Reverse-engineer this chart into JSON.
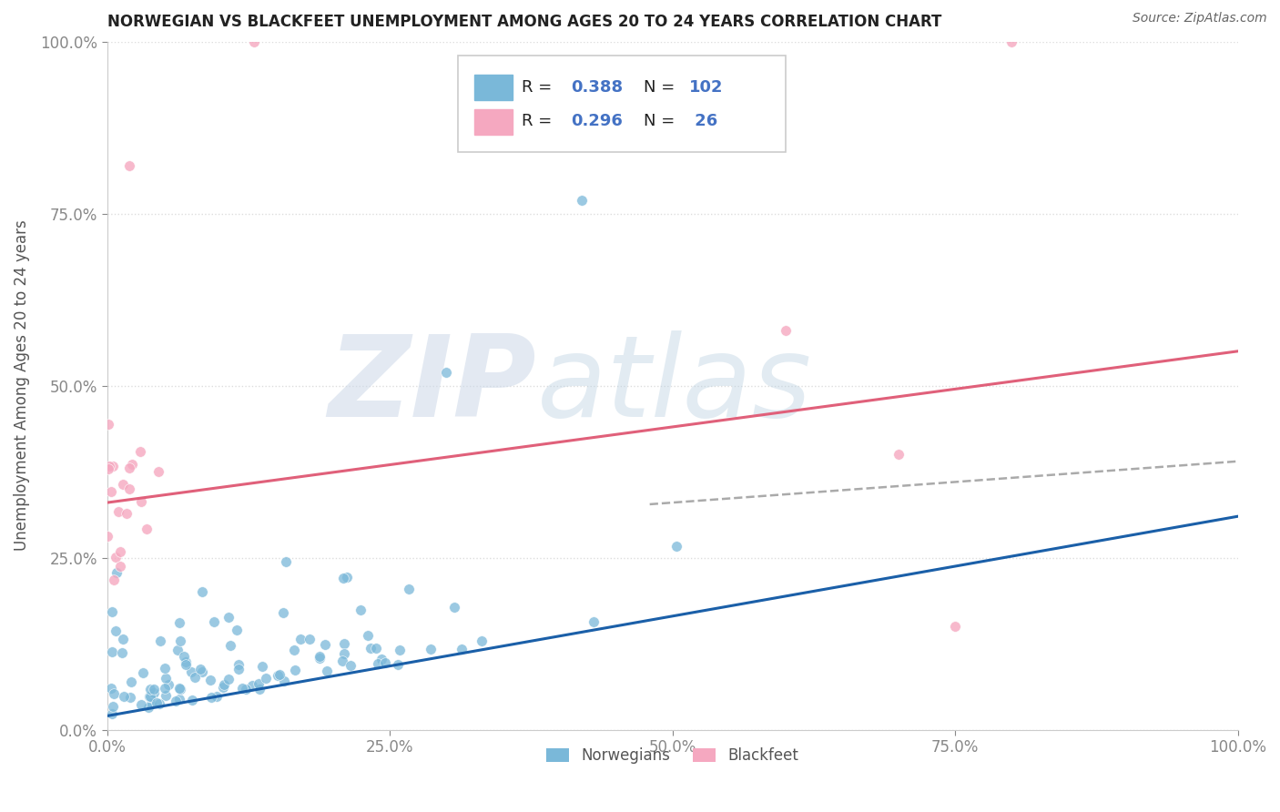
{
  "title": "NORWEGIAN VS BLACKFEET UNEMPLOYMENT AMONG AGES 20 TO 24 YEARS CORRELATION CHART",
  "source": "Source: ZipAtlas.com",
  "ylabel": "Unemployment Among Ages 20 to 24 years",
  "xlim": [
    0.0,
    1.0
  ],
  "ylim": [
    0.0,
    1.0
  ],
  "xticks": [
    0.0,
    0.25,
    0.5,
    0.75,
    1.0
  ],
  "xtick_labels": [
    "0.0%",
    "25.0%",
    "50.0%",
    "75.0%",
    "100.0%"
  ],
  "yticks": [
    0.0,
    0.25,
    0.5,
    0.75,
    1.0
  ],
  "ytick_labels": [
    "0.0%",
    "25.0%",
    "50.0%",
    "75.0%",
    "100.0%"
  ],
  "norwegian_color": "#7ab8d9",
  "blackfeet_color": "#f5a8c0",
  "trend_line_blue": "#1a5fa8",
  "trend_line_pink": "#e0607a",
  "trend_line_dashed": "#aaaaaa",
  "watermark_color": "#ccd8e8",
  "background_color": "#ffffff",
  "tick_color": "#4472c4",
  "grid_color": "#dddddd",
  "norwegian_R": 0.388,
  "norwegian_N": 102,
  "blackfeet_R": 0.296,
  "blackfeet_N": 26,
  "nor_intercept": 0.02,
  "nor_slope": 0.29,
  "bla_intercept": 0.33,
  "bla_slope": 0.22,
  "dash_intercept": 0.27,
  "dash_slope": 0.12
}
